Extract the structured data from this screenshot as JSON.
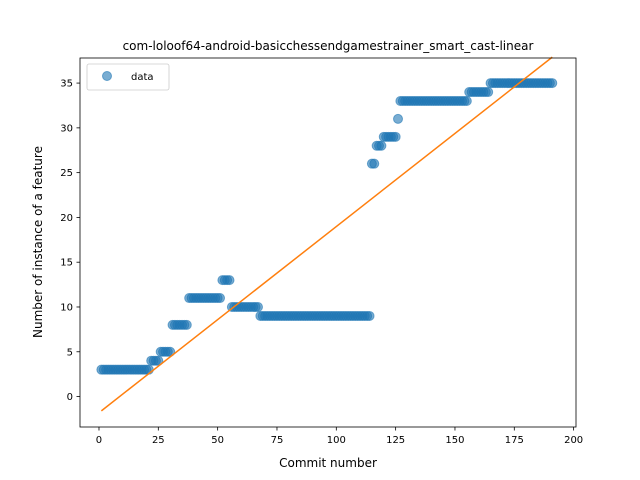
{
  "chart_data": {
    "type": "scatter",
    "title": "com-loloof64-android-basicchessendgamestrainer_smart_cast-linear",
    "xlabel": "Commit number",
    "ylabel": "Number of instance of a feature",
    "xlim": [
      -8,
      201
    ],
    "ylim": [
      -3.4,
      37.8
    ],
    "xticks": [
      0,
      25,
      50,
      75,
      100,
      125,
      150,
      175,
      200
    ],
    "yticks": [
      0,
      5,
      10,
      15,
      20,
      25,
      30,
      35
    ],
    "grid": false,
    "legend": {
      "placement": "top-left",
      "entries": [
        "data"
      ]
    },
    "colors": {
      "data": "#1f77b4",
      "fit": "#ff7f0e"
    },
    "series": [
      {
        "name": "data",
        "kind": "scatter",
        "segments": [
          {
            "x_start": 1,
            "x_end": 21,
            "y": 3
          },
          {
            "x_start": 22,
            "x_end": 25,
            "y": 4
          },
          {
            "x_start": 26,
            "x_end": 30,
            "y": 5
          },
          {
            "x_start": 31,
            "x_end": 37,
            "y": 8
          },
          {
            "x_start": 38,
            "x_end": 51,
            "y": 11
          },
          {
            "x_start": 52,
            "x_end": 55,
            "y": 13
          },
          {
            "x_start": 56,
            "x_end": 67,
            "y": 10
          },
          {
            "x_start": 68,
            "x_end": 114,
            "y": 9
          },
          {
            "x_start": 115,
            "x_end": 116,
            "y": 26
          },
          {
            "x_start": 117,
            "x_end": 119,
            "y": 28
          },
          {
            "x_start": 120,
            "x_end": 125,
            "y": 29
          },
          {
            "x_start": 126,
            "x_end": 126,
            "y": 31
          },
          {
            "x_start": 127,
            "x_end": 155,
            "y": 33
          },
          {
            "x_start": 156,
            "x_end": 164,
            "y": 34
          },
          {
            "x_start": 165,
            "x_end": 191,
            "y": 35
          }
        ]
      },
      {
        "name": "",
        "kind": "line",
        "x": [
          1,
          191
        ],
        "y": [
          -1.6,
          37.9
        ]
      }
    ]
  }
}
